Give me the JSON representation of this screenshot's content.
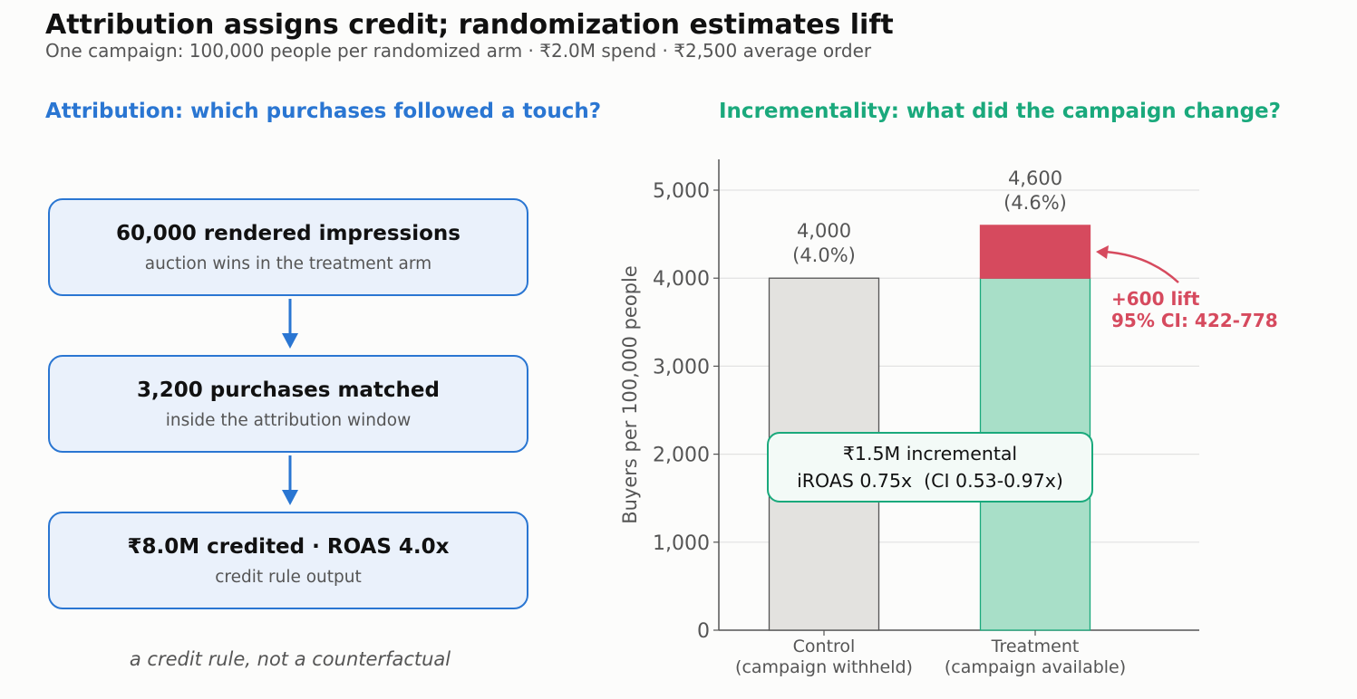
{
  "title": "Attribution assigns credit; randomization estimates lift",
  "subtitle": "One campaign: 100,000 people per randomized arm · ₹2.0M spend · ₹2,500 average order",
  "attribution": {
    "heading": "Attribution: which purchases followed a touch?",
    "accent_color": "#2a76d2",
    "steps": [
      {
        "main": "60,000 rendered impressions",
        "sub": "auction wins in the treatment arm"
      },
      {
        "main": "3,200 purchases matched",
        "sub": "inside the attribution window"
      },
      {
        "main": "₹8.0M credited  ·  ROAS 4.0x",
        "sub": "credit rule output"
      }
    ],
    "footnote": "a credit rule, not a counterfactual"
  },
  "incrementality": {
    "heading": "Incrementality: what did the campaign change?",
    "accent_color": "#1aa97c",
    "callout_line1": "₹1.5M incremental",
    "callout_line2": "iROAS 0.75x  (CI 0.53-0.97x)"
  },
  "chart_data": {
    "type": "bar",
    "ylabel": "Buyers per 100,000 people",
    "ylim": [
      0,
      5350
    ],
    "yticks": [
      0,
      1000,
      2000,
      3000,
      4000,
      5000
    ],
    "ytick_labels": [
      "0",
      "1,000",
      "2,000",
      "3,000",
      "4,000",
      "5,000"
    ],
    "grid": true,
    "categories": [
      {
        "line1": "Control",
        "line2": "(campaign withheld)"
      },
      {
        "line1": "Treatment",
        "line2": "(campaign available)"
      }
    ],
    "bars": [
      {
        "segments": [
          {
            "value": 4000,
            "color": "#e3e2df",
            "stroke": "#555555"
          }
        ],
        "label_value": "4,000",
        "label_pct": "(4.0%)"
      },
      {
        "segments": [
          {
            "value": 4000,
            "color": "#a8dfc8",
            "stroke": "#1aa97c"
          },
          {
            "value": 600,
            "color": "#d64a5e",
            "stroke": "#d64a5e"
          }
        ],
        "label_value": "4,600",
        "label_pct": "(4.6%)"
      }
    ],
    "lift_annotation": {
      "line1": "+600 lift",
      "line2": "95% CI: 422-778",
      "color": "#d64a5e"
    }
  }
}
